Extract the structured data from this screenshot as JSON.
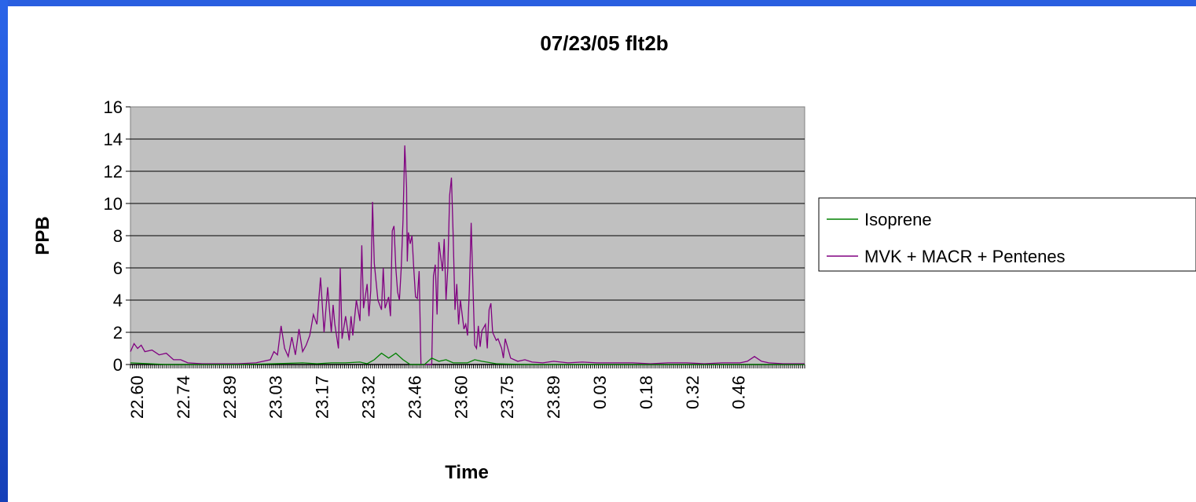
{
  "chart_data": {
    "type": "line",
    "title": "07/23/05 flt2b",
    "xlabel": "Time",
    "ylabel": "PPB",
    "ylim": [
      0,
      16
    ],
    "yticks": [
      "0",
      "2",
      "4",
      "6",
      "8",
      "10",
      "12",
      "14",
      "16"
    ],
    "xticks": [
      "22.60",
      "22.74",
      "22.89",
      "23.03",
      "23.17",
      "23.32",
      "23.46",
      "23.60",
      "23.75",
      "23.89",
      "0.03",
      "0.18",
      "0.32",
      "0.46"
    ],
    "grid": true,
    "legend_position": "right",
    "series": [
      {
        "name": "Isoprene",
        "color": "#008000",
        "points": [
          [
            22.6,
            0.1
          ],
          [
            22.7,
            0.0
          ],
          [
            22.8,
            0.0
          ],
          [
            22.9,
            0.0
          ],
          [
            23.0,
            0.05
          ],
          [
            23.08,
            0.1
          ],
          [
            23.12,
            0.05
          ],
          [
            23.16,
            0.1
          ],
          [
            23.2,
            0.1
          ],
          [
            23.24,
            0.15
          ],
          [
            23.26,
            0.05
          ],
          [
            23.28,
            0.3
          ],
          [
            23.3,
            0.7
          ],
          [
            23.32,
            0.4
          ],
          [
            23.34,
            0.7
          ],
          [
            23.36,
            0.3
          ],
          [
            23.38,
            0.0
          ],
          [
            23.42,
            0.0
          ],
          [
            23.44,
            0.4
          ],
          [
            23.46,
            0.2
          ],
          [
            23.48,
            0.3
          ],
          [
            23.5,
            0.1
          ],
          [
            23.54,
            0.1
          ],
          [
            23.56,
            0.3
          ],
          [
            23.58,
            0.2
          ],
          [
            23.62,
            0.05
          ],
          [
            23.7,
            0.0
          ],
          [
            23.8,
            0.0
          ],
          [
            23.9,
            0.0
          ],
          [
            24.0,
            0.0
          ],
          [
            24.2,
            0.0
          ],
          [
            24.4,
            0.0
          ],
          [
            24.48,
            0.0
          ]
        ]
      },
      {
        "name": "MVK + MACR + Pentenes",
        "color": "#800080",
        "points": [
          [
            22.6,
            0.8
          ],
          [
            22.61,
            1.3
          ],
          [
            22.62,
            1.0
          ],
          [
            22.63,
            1.2
          ],
          [
            22.64,
            0.8
          ],
          [
            22.66,
            0.9
          ],
          [
            22.68,
            0.6
          ],
          [
            22.7,
            0.7
          ],
          [
            22.72,
            0.3
          ],
          [
            22.74,
            0.3
          ],
          [
            22.76,
            0.1
          ],
          [
            22.8,
            0.05
          ],
          [
            22.85,
            0.05
          ],
          [
            22.9,
            0.05
          ],
          [
            22.95,
            0.1
          ],
          [
            22.99,
            0.3
          ],
          [
            23.0,
            0.8
          ],
          [
            23.01,
            0.6
          ],
          [
            23.02,
            2.4
          ],
          [
            23.03,
            1.0
          ],
          [
            23.04,
            0.5
          ],
          [
            23.05,
            1.7
          ],
          [
            23.06,
            0.6
          ],
          [
            23.07,
            2.2
          ],
          [
            23.08,
            0.8
          ],
          [
            23.09,
            1.2
          ],
          [
            23.1,
            1.8
          ],
          [
            23.11,
            3.1
          ],
          [
            23.12,
            2.5
          ],
          [
            23.13,
            5.4
          ],
          [
            23.14,
            2.0
          ],
          [
            23.15,
            4.8
          ],
          [
            23.16,
            2.0
          ],
          [
            23.165,
            3.7
          ],
          [
            23.17,
            2.5
          ],
          [
            23.18,
            1.0
          ],
          [
            23.185,
            6.0
          ],
          [
            23.19,
            1.6
          ],
          [
            23.2,
            3.0
          ],
          [
            23.21,
            1.5
          ],
          [
            23.215,
            3.0
          ],
          [
            23.22,
            1.8
          ],
          [
            23.23,
            4.0
          ],
          [
            23.24,
            2.7
          ],
          [
            23.245,
            7.4
          ],
          [
            23.25,
            3.5
          ],
          [
            23.26,
            5.0
          ],
          [
            23.265,
            3.0
          ],
          [
            23.27,
            4.6
          ],
          [
            23.275,
            10.1
          ],
          [
            23.28,
            6.3
          ],
          [
            23.29,
            4.0
          ],
          [
            23.3,
            3.4
          ],
          [
            23.305,
            6.0
          ],
          [
            23.31,
            3.5
          ],
          [
            23.32,
            4.2
          ],
          [
            23.325,
            3.0
          ],
          [
            23.33,
            8.3
          ],
          [
            23.335,
            8.6
          ],
          [
            23.34,
            6.0
          ],
          [
            23.345,
            4.5
          ],
          [
            23.35,
            4.0
          ],
          [
            23.355,
            6.0
          ],
          [
            23.36,
            9.0
          ],
          [
            23.365,
            13.6
          ],
          [
            23.37,
            11.0
          ],
          [
            23.372,
            6.4
          ],
          [
            23.375,
            8.2
          ],
          [
            23.38,
            7.5
          ],
          [
            23.385,
            8.0
          ],
          [
            23.39,
            6.0
          ],
          [
            23.395,
            4.2
          ],
          [
            23.4,
            4.1
          ],
          [
            23.405,
            5.8
          ],
          [
            23.41,
            0.0
          ],
          [
            23.42,
            0.0
          ],
          [
            23.44,
            0.0
          ],
          [
            23.445,
            5.5
          ],
          [
            23.45,
            6.2
          ],
          [
            23.455,
            3.1
          ],
          [
            23.46,
            7.6
          ],
          [
            23.47,
            5.8
          ],
          [
            23.475,
            7.8
          ],
          [
            23.48,
            4.0
          ],
          [
            23.485,
            6.0
          ],
          [
            23.49,
            10.5
          ],
          [
            23.495,
            11.6
          ],
          [
            23.5,
            8.0
          ],
          [
            23.505,
            3.4
          ],
          [
            23.51,
            5.0
          ],
          [
            23.515,
            2.5
          ],
          [
            23.52,
            4.0
          ],
          [
            23.53,
            2.2
          ],
          [
            23.535,
            2.5
          ],
          [
            23.54,
            1.8
          ],
          [
            23.545,
            4.7
          ],
          [
            23.55,
            8.8
          ],
          [
            23.555,
            5.0
          ],
          [
            23.56,
            1.2
          ],
          [
            23.565,
            1.0
          ],
          [
            23.57,
            2.4
          ],
          [
            23.575,
            1.1
          ],
          [
            23.58,
            2.1
          ],
          [
            23.59,
            2.5
          ],
          [
            23.595,
            1.0
          ],
          [
            23.6,
            3.4
          ],
          [
            23.605,
            3.8
          ],
          [
            23.61,
            2.0
          ],
          [
            23.62,
            1.5
          ],
          [
            23.625,
            1.6
          ],
          [
            23.63,
            1.3
          ],
          [
            23.635,
            1.0
          ],
          [
            23.64,
            0.4
          ],
          [
            23.645,
            1.6
          ],
          [
            23.65,
            1.2
          ],
          [
            23.66,
            0.4
          ],
          [
            23.68,
            0.2
          ],
          [
            23.7,
            0.3
          ],
          [
            23.72,
            0.15
          ],
          [
            23.75,
            0.1
          ],
          [
            23.78,
            0.2
          ],
          [
            23.82,
            0.1
          ],
          [
            23.86,
            0.15
          ],
          [
            23.9,
            0.1
          ],
          [
            23.95,
            0.1
          ],
          [
            24.0,
            0.1
          ],
          [
            24.05,
            0.05
          ],
          [
            24.1,
            0.1
          ],
          [
            24.15,
            0.1
          ],
          [
            24.2,
            0.05
          ],
          [
            24.25,
            0.1
          ],
          [
            24.3,
            0.1
          ],
          [
            24.32,
            0.2
          ],
          [
            24.34,
            0.5
          ],
          [
            24.36,
            0.2
          ],
          [
            24.38,
            0.1
          ],
          [
            24.42,
            0.05
          ],
          [
            24.46,
            0.05
          ],
          [
            24.48,
            0.05
          ]
        ]
      }
    ]
  }
}
